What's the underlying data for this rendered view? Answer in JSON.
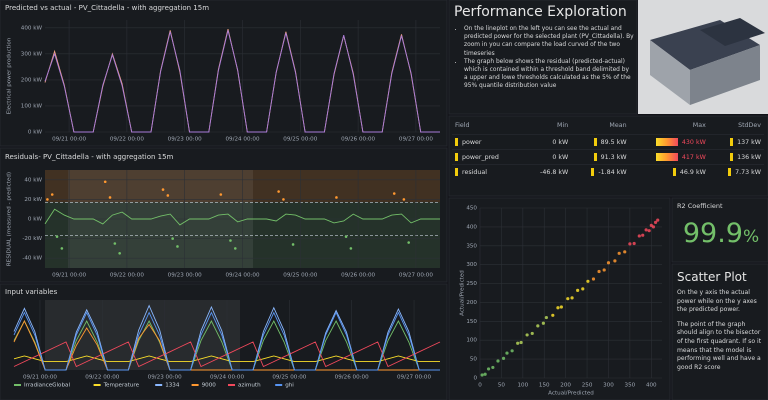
{
  "chart_data": [
    {
      "type": "line",
      "title": "Predicted vs actual - PV_Cittadella - with aggregation 15m",
      "ylabel": "Electrical power production",
      "x": [
        0,
        4,
        8,
        12,
        16,
        20,
        24,
        28,
        32,
        36,
        40,
        44,
        48,
        52,
        56,
        60,
        64,
        68,
        72,
        76,
        80,
        84,
        88,
        92,
        96,
        100,
        104,
        108,
        112,
        116,
        120,
        124,
        128,
        132,
        136,
        140,
        144,
        148,
        152,
        156,
        160,
        164
      ],
      "xlim": [
        0,
        164
      ],
      "xticks": [
        {
          "value": 10,
          "label": "09/21 00:00"
        },
        {
          "value": 34,
          "label": "09/22 00:00"
        },
        {
          "value": 58,
          "label": "09/23 00:00"
        },
        {
          "value": 82,
          "label": "09/24 00:00"
        },
        {
          "value": 106,
          "label": "09/25 00:00"
        },
        {
          "value": 130,
          "label": "09/26 00:00"
        },
        {
          "value": 154,
          "label": "09/27 00:00"
        }
      ],
      "ylim": [
        0,
        430
      ],
      "yticks": [
        {
          "value": 0,
          "label": "0 kW"
        },
        {
          "value": 100,
          "label": "100 kW"
        },
        {
          "value": 200,
          "label": "200 kW"
        },
        {
          "value": 300,
          "label": "300 kW"
        },
        {
          "value": 400,
          "label": "400 kW"
        }
      ],
      "series": [
        {
          "color": "#f4a582",
          "values": [
            190,
            310,
            180,
            0,
            0,
            0,
            175,
            300,
            185,
            0,
            0,
            0,
            235,
            390,
            230,
            0,
            0,
            0,
            240,
            395,
            235,
            0,
            0,
            0,
            228,
            385,
            232,
            0,
            0,
            0,
            220,
            370,
            225,
            0,
            0,
            0,
            228,
            375,
            222,
            0,
            0,
            0
          ]
        },
        {
          "color": "#a77bd9",
          "values": [
            195,
            300,
            176,
            0,
            0,
            0,
            180,
            296,
            178,
            0,
            0,
            0,
            232,
            385,
            236,
            0,
            0,
            0,
            236,
            390,
            238,
            0,
            0,
            0,
            230,
            380,
            228,
            0,
            0,
            0,
            224,
            372,
            220,
            0,
            0,
            0,
            224,
            370,
            226,
            0,
            0,
            0
          ]
        }
      ]
    },
    {
      "type": "line",
      "title": "Residuals- PV_Cittadella - with aggregation 15m",
      "ylabel": "RESIDUAL (measured - predicted)",
      "x": [
        0,
        4,
        8,
        12,
        16,
        20,
        24,
        28,
        32,
        36,
        40,
        44,
        48,
        52,
        56,
        60,
        64,
        68,
        72,
        76,
        80,
        84,
        88,
        92,
        96,
        100,
        104,
        108,
        112,
        116,
        120,
        124,
        128,
        132,
        136,
        140,
        144,
        148,
        152,
        156,
        160,
        164
      ],
      "xlim": [
        0,
        164
      ],
      "xticks": [
        {
          "value": 10,
          "label": "09/21 00:00"
        },
        {
          "value": 34,
          "label": "09/22 00:00"
        },
        {
          "value": 58,
          "label": "09/23 00:00"
        },
        {
          "value": 82,
          "label": "09/24 00:00"
        },
        {
          "value": 106,
          "label": "09/25 00:00"
        },
        {
          "value": 130,
          "label": "09/26 00:00"
        },
        {
          "value": 154,
          "label": "09/27 00:00"
        }
      ],
      "ylim": [
        -50,
        50
      ],
      "yticks": [
        {
          "value": 40,
          "label": "40 kW"
        },
        {
          "value": 20,
          "label": "20 kW"
        },
        {
          "value": 0,
          "label": "0 kW"
        },
        {
          "value": -20,
          "label": "-20 kW"
        },
        {
          "value": -40,
          "label": "-40 kW"
        }
      ],
      "thresholds": [
        17,
        -17
      ],
      "band_colors": {
        "above": "#ff9830",
        "below": "#73bf69"
      },
      "series": [
        {
          "color": "#73bf69",
          "values": [
            -5,
            10,
            4,
            0,
            0,
            0,
            -5,
            4,
            7,
            0,
            0,
            0,
            3,
            5,
            -6,
            0,
            0,
            0,
            4,
            5,
            -3,
            0,
            0,
            0,
            -2,
            5,
            4,
            0,
            0,
            0,
            -4,
            -2,
            5,
            0,
            0,
            0,
            4,
            5,
            -4,
            0,
            0,
            0
          ]
        }
      ],
      "points": {
        "x": [
          1,
          3,
          5,
          7,
          25,
          27,
          29,
          31,
          49,
          51,
          53,
          55,
          73,
          77,
          79,
          97,
          99,
          103,
          121,
          125,
          127,
          145,
          149,
          151
        ],
        "y": [
          20,
          25,
          -18,
          -30,
          38,
          22,
          -25,
          -35,
          30,
          24,
          -20,
          -28,
          25,
          -22,
          -30,
          28,
          20,
          -26,
          22,
          -18,
          -30,
          26,
          20,
          -24
        ]
      }
    },
    {
      "type": "line",
      "title": "Input variables",
      "x": [
        0,
        4,
        8,
        12,
        16,
        20,
        24,
        28,
        32,
        36,
        40,
        44,
        48,
        52,
        56,
        60,
        64,
        68,
        72,
        76,
        80,
        84,
        88,
        92,
        96,
        100,
        104,
        108,
        112,
        116,
        120,
        124,
        128,
        132,
        136,
        140,
        144,
        148,
        152,
        156,
        160,
        164
      ],
      "xlim": [
        0,
        164
      ],
      "xticks": [
        {
          "value": 10,
          "label": "09/21 00:00"
        },
        {
          "value": 34,
          "label": "09/22 00:00"
        },
        {
          "value": 58,
          "label": "09/23 00:00"
        },
        {
          "value": 82,
          "label": "09/24 00:00"
        },
        {
          "value": 106,
          "label": "09/25 00:00"
        },
        {
          "value": 130,
          "label": "09/26 00:00"
        },
        {
          "value": 154,
          "label": "09/27 00:00"
        }
      ],
      "ylim": [
        0,
        100
      ],
      "legend": "bottom",
      "series": [
        {
          "name": "IrradianceGlobal",
          "color": "#73bf69",
          "values": [
            42,
            70,
            40,
            0,
            0,
            0,
            42,
            70,
            40,
            0,
            0,
            0,
            42,
            70,
            40,
            0,
            0,
            0,
            42,
            70,
            40,
            0,
            0,
            0,
            42,
            70,
            40,
            0,
            0,
            0,
            42,
            70,
            40,
            0,
            0,
            0,
            42,
            70,
            40,
            0,
            0,
            0
          ]
        },
        {
          "name": "Temperature",
          "color": "#fade2a",
          "values": [
            16,
            20,
            16,
            12,
            12,
            12,
            16,
            20,
            16,
            12,
            12,
            12,
            16,
            20,
            16,
            12,
            12,
            12,
            16,
            20,
            16,
            12,
            12,
            12,
            16,
            20,
            16,
            12,
            12,
            12,
            16,
            20,
            16,
            12,
            12,
            12,
            16,
            20,
            16,
            12,
            12,
            12
          ]
        },
        {
          "name": "1334",
          "color": "#8ab8ff",
          "values": [
            55,
            88,
            55,
            0,
            0,
            0,
            54,
            86,
            55,
            0,
            0,
            0,
            57,
            92,
            58,
            0,
            0,
            0,
            56,
            90,
            56,
            0,
            0,
            0,
            55,
            89,
            56,
            0,
            0,
            0,
            53,
            85,
            54,
            0,
            0,
            0,
            54,
            87,
            55,
            0,
            0,
            0
          ]
        },
        {
          "name": "9000",
          "color": "#ff9830",
          "values": [
            40,
            70,
            38,
            0,
            0,
            0,
            35,
            60,
            36,
            0,
            0,
            0,
            45,
            65,
            42,
            0,
            0,
            0,
            0,
            0,
            0,
            0,
            0,
            0,
            0,
            0,
            0,
            0,
            0,
            0,
            0,
            0,
            0,
            0,
            0,
            0,
            0,
            0,
            0,
            0,
            0,
            0
          ]
        },
        {
          "name": "azimuth",
          "color": "#f2495c",
          "values": [
            5,
            12,
            19,
            26,
            33,
            40,
            5,
            12,
            19,
            26,
            33,
            40,
            5,
            12,
            19,
            26,
            33,
            40,
            5,
            12,
            19,
            26,
            33,
            40,
            5,
            12,
            19,
            26,
            33,
            40,
            5,
            12,
            19,
            26,
            33,
            40,
            5,
            12,
            19,
            26,
            33,
            40
          ]
        },
        {
          "name": "ghi",
          "color": "#5794f2",
          "values": [
            50,
            82,
            50,
            0,
            0,
            0,
            50,
            82,
            50,
            0,
            0,
            0,
            50,
            82,
            50,
            0,
            0,
            0,
            50,
            82,
            50,
            0,
            0,
            0,
            50,
            82,
            50,
            0,
            0,
            0,
            50,
            82,
            50,
            0,
            0,
            0,
            50,
            82,
            50,
            0,
            0,
            0
          ]
        }
      ]
    },
    {
      "type": "scatter",
      "xlabel": "Actual/Predicted",
      "ylabel": "Actual/Predicted",
      "xlim": [
        0,
        425
      ],
      "ylim": [
        0,
        450
      ],
      "xticks": [
        0,
        50,
        100,
        150,
        200,
        250,
        300,
        350,
        400
      ],
      "yticks": [
        0,
        50,
        100,
        150,
        200,
        250,
        300,
        350,
        400,
        450
      ],
      "colorscale": [
        "#73bf69",
        "#b5d35a",
        "#fade2a",
        "#ff9830",
        "#f2495c"
      ],
      "x": [
        5,
        12,
        20,
        30,
        42,
        55,
        63,
        75,
        88,
        96,
        110,
        122,
        135,
        148,
        155,
        170,
        182,
        190,
        205,
        215,
        228,
        240,
        252,
        265,
        278,
        290,
        300,
        315,
        325,
        338,
        350,
        360,
        372,
        380,
        388,
        395,
        400,
        405,
        410,
        415
      ],
      "values": [
        8,
        10,
        24,
        28,
        45,
        52,
        66,
        72,
        92,
        94,
        114,
        118,
        138,
        145,
        160,
        166,
        186,
        188,
        210,
        212,
        232,
        236,
        256,
        262,
        282,
        286,
        305,
        310,
        330,
        334,
        355,
        356,
        376,
        378,
        392,
        390,
        404,
        400,
        412,
        418
      ]
    }
  ],
  "info": {
    "title": "Performance Exploration",
    "bullets": [
      "On the lineplot on the left you can see the actual and predicted power for the selected plant (PV_Cittadella). By zoom in you can compare the load curved of the two timeseries",
      "The graph below shows the residual (predicted-actual) which is contained within a threshold band delimited by a upper and lowe thresholds calculated as the 5% of the 95% quantile distribution value"
    ]
  },
  "stats_table": {
    "columns": [
      "Field",
      "Min",
      "Mean",
      "Max",
      "StdDev"
    ],
    "rows": [
      [
        "power",
        "0 kW",
        "89.5 kW",
        "430 kW",
        "137 kW"
      ],
      [
        "power_pred",
        "0 kW",
        "91.3 kW",
        "417 kW",
        "136 kW"
      ],
      [
        "residual",
        "-46.8 kW",
        "-1.84 kW",
        "46.9 kW",
        "7.73 kW"
      ]
    ]
  },
  "r2": {
    "title": "R2 Coefficient",
    "value": "99.9",
    "unit": "%"
  },
  "scatter_notes": {
    "title": "Scatter Plot",
    "paragraphs": [
      "On the y axis the actual power while on the y axes the predicted power.",
      "The point of the graph should align to the bisector of the first quadrant. If so it means that the model is performing well and have a good R2 score"
    ]
  }
}
